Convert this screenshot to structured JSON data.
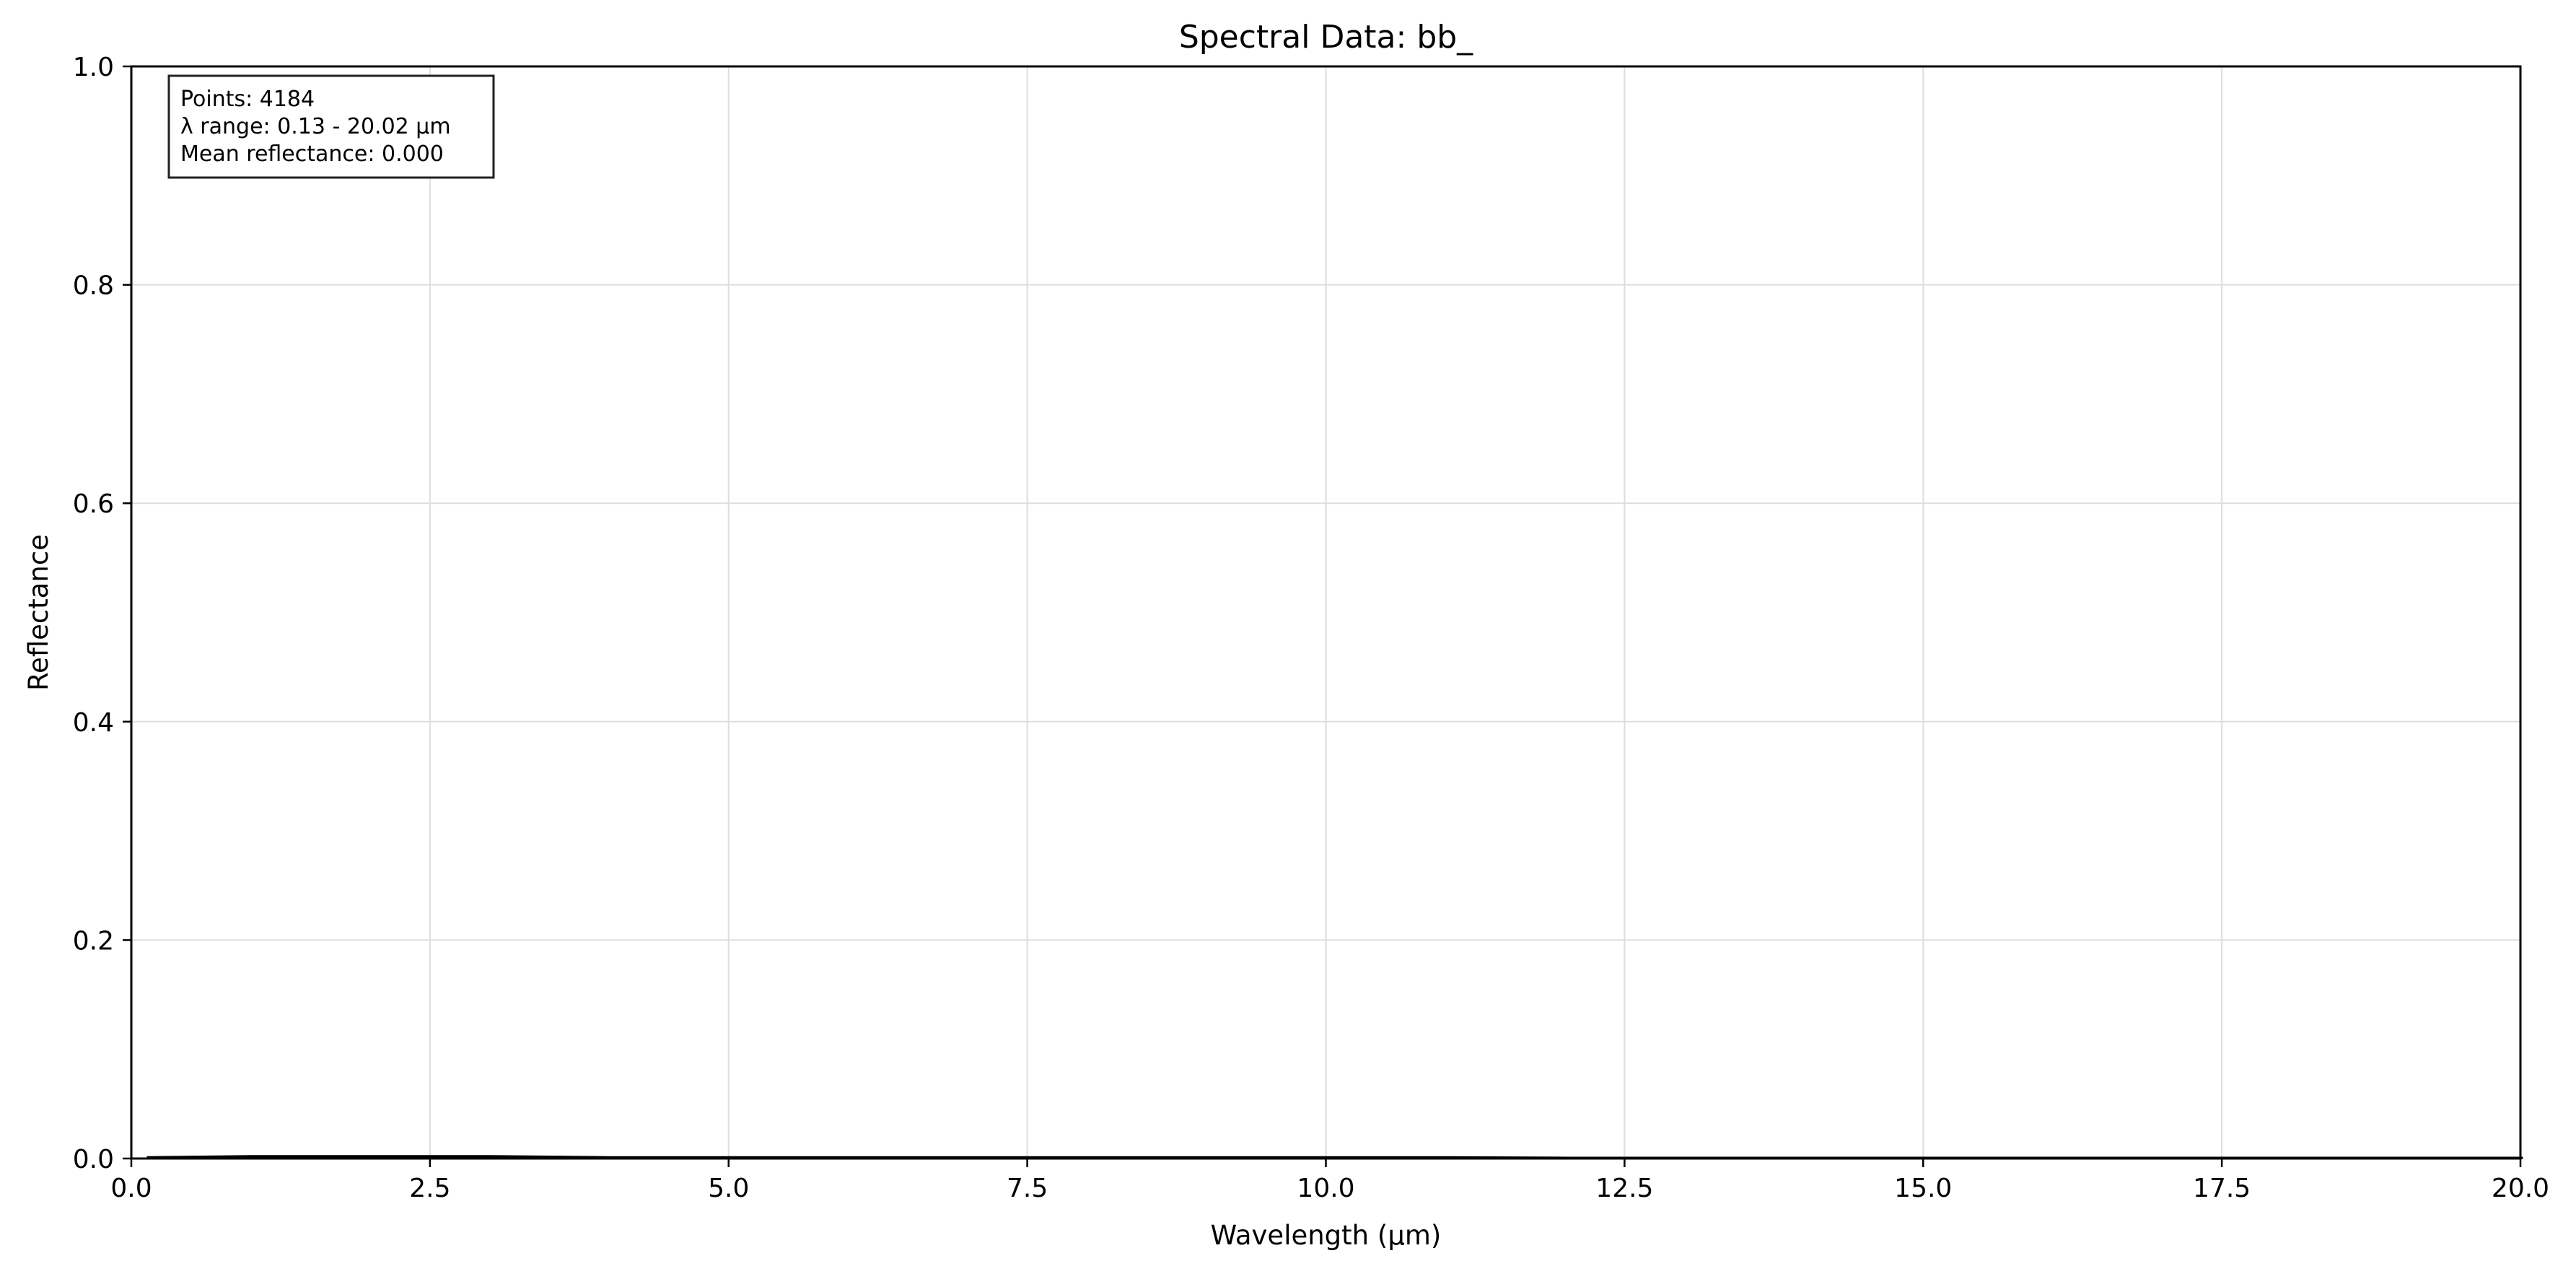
{
  "chart_data": {
    "type": "line",
    "title": "Spectral Data: bb_",
    "xlabel": "Wavelength (µm)",
    "ylabel": "Reflectance",
    "xlim": [
      0,
      20
    ],
    "ylim": [
      0,
      1
    ],
    "x_ticks": [
      0,
      2.5,
      5,
      7.5,
      10,
      12.5,
      15,
      17.5,
      20
    ],
    "x_tick_labels": [
      "0.0",
      "2.5",
      "5.0",
      "7.5",
      "10.0",
      "12.5",
      "15.0",
      "17.5",
      "20.0"
    ],
    "y_ticks": [
      0,
      0.2,
      0.4,
      0.6,
      0.8,
      1.0
    ],
    "y_tick_labels": [
      "0.0",
      "0.2",
      "0.4",
      "0.6",
      "0.8",
      "1.0"
    ],
    "grid": true,
    "series": [
      {
        "color": "#000000",
        "x": [
          0.13,
          1,
          2,
          3,
          4,
          5,
          6,
          7,
          8,
          9,
          10,
          11,
          12,
          13,
          14,
          15,
          16,
          17,
          18,
          19,
          20.02
        ],
        "values": [
          0.001,
          0.002,
          0.002,
          0.002,
          0.001,
          0.001,
          0.001,
          0.001,
          0.001,
          0.001,
          0.001,
          0.001,
          0.0005,
          0.0005,
          0.0005,
          0.0005,
          0.0005,
          0.0005,
          0.0005,
          0.0005,
          0.0005
        ]
      }
    ],
    "annotation": {
      "lines": [
        "Points: 4184",
        "λ range: 0.13 - 20.02 µm",
        "Mean reflectance: 0.000"
      ],
      "placement": "top-left"
    }
  }
}
